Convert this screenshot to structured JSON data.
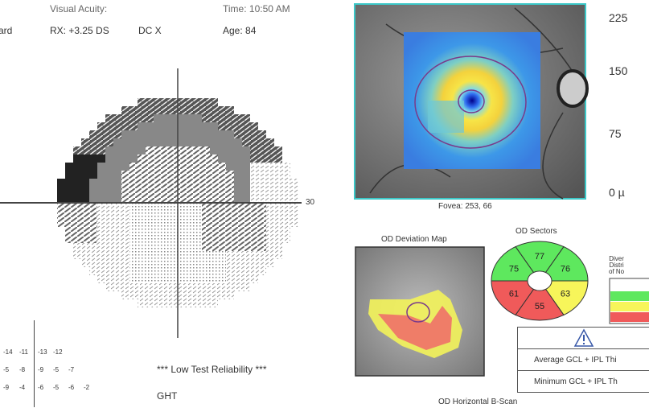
{
  "header": {
    "visual_acuity_label": "Visual Acuity:",
    "time": "Time: 10:50 AM",
    "left_cut": "ard",
    "rx": "RX: +3.25 DS",
    "dc": "DC  X",
    "age": "Age: 84"
  },
  "visual_field": {
    "axis_label": "30",
    "total_deviation_rows": [
      [
        "-14",
        "-11",
        "-13",
        "-12"
      ],
      [
        "-5",
        "-8",
        "-9",
        "-5",
        "-7"
      ],
      [
        "-9",
        "-4",
        "-6",
        "-5",
        "-6",
        "-2"
      ]
    ],
    "reliability": "*** Low Test Reliability ***",
    "ght": "GHT"
  },
  "gcl": {
    "fovea": "Fovea: 253, 66",
    "scale": [
      "225",
      "150",
      "75",
      "0 µ"
    ],
    "deviation_title": "OD Deviation Map",
    "sectors_title": "OD Sectors",
    "sectors": [
      {
        "label": "77",
        "color": "#5ee85e"
      },
      {
        "label": "76",
        "color": "#5ee85e"
      },
      {
        "label": "63",
        "color": "#f7f55a"
      },
      {
        "label": "55",
        "color": "#f05a5a"
      },
      {
        "label": "61",
        "color": "#f05a5a"
      },
      {
        "label": "75",
        "color": "#5ee85e"
      }
    ],
    "legend_title": [
      "Diver",
      "Distri",
      "of No"
    ],
    "legend_colors": [
      "#ffffff",
      "#5ee85e",
      "#f7f55a",
      "#f05a5a"
    ],
    "table": {
      "warning_icon": "warning-triangle-icon",
      "avg": "Average GCL + IPL Thi",
      "min": "Minimum GCL + IPL Th"
    },
    "bscan_title": "OD Horizontal B-Scan"
  },
  "colors": {
    "frame": "#3cc8c8",
    "ring": "#7a3a8a"
  }
}
